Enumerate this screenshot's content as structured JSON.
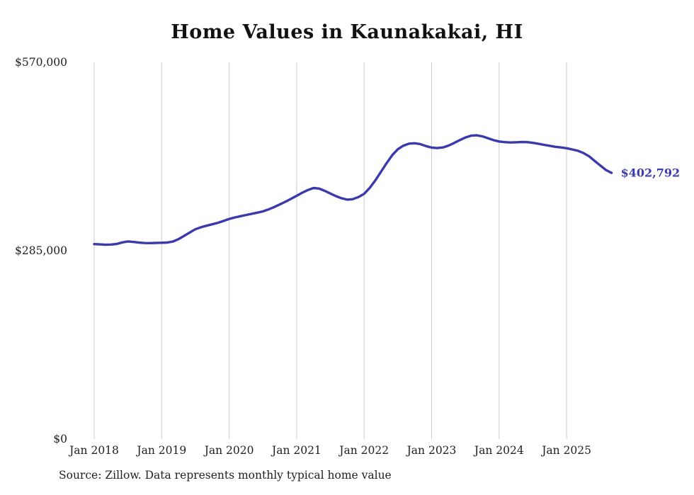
{
  "chart_data": {
    "type": "line",
    "title": "Home Values in Kaunakakai, HI",
    "series_name": "Typical home value",
    "frequency": "monthly",
    "start_label": "Jan 2018",
    "end_label": "Sep 2025",
    "x_tick_labels": [
      "Jan 2018",
      "Jan 2019",
      "Jan 2020",
      "Jan 2021",
      "Jan 2022",
      "Jan 2023",
      "Jan 2024",
      "Jan 2025"
    ],
    "y_ticks": [
      {
        "label": "$0",
        "value": 0
      },
      {
        "label": "$285,000",
        "value": 285000
      },
      {
        "label": "$570,000",
        "value": 570000
      }
    ],
    "ylim": [
      0,
      570000
    ],
    "grid": "vertical-only",
    "legend": "none",
    "end_annotation": "$402,792",
    "latest_value": 402792,
    "values": [
      295000,
      294500,
      294000,
      294300,
      295200,
      297500,
      299000,
      298200,
      297200,
      296600,
      296500,
      296800,
      297000,
      297300,
      298800,
      302500,
      307500,
      312500,
      317500,
      320500,
      322800,
      325000,
      327200,
      330000,
      333000,
      335200,
      337200,
      339000,
      340800,
      342500,
      344500,
      347500,
      351000,
      355000,
      359000,
      363500,
      368000,
      372800,
      376800,
      379800,
      379000,
      375500,
      371500,
      367500,
      364300,
      362300,
      363000,
      366200,
      371000,
      380000,
      391500,
      404500,
      417500,
      429500,
      438500,
      444000,
      447000,
      447500,
      446200,
      443200,
      441000,
      440200,
      441200,
      444000,
      448000,
      452200,
      456200,
      459000,
      459500,
      458000,
      455200,
      452200,
      450200,
      449200,
      448700,
      449000,
      449500,
      449200,
      448200,
      446700,
      445200,
      443700,
      442200,
      441200,
      440000,
      438200,
      436200,
      432800,
      427800,
      420800,
      413800,
      407000,
      402792
    ],
    "colors": {
      "line": "#3a3aad",
      "annotation": "#3a3aad",
      "gridline": "#cccccc",
      "text": "#1f1f1f"
    }
  },
  "source_note": "Source: Zillow. Data represents monthly typical home value"
}
